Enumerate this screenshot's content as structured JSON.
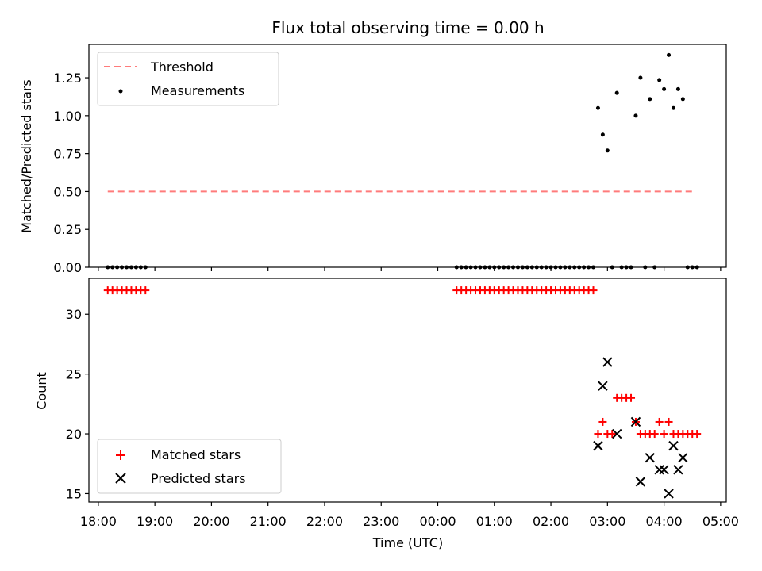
{
  "chart_data": [
    {
      "type": "scatter",
      "title": "Flux total observing time = 0.00 h",
      "xlabel": "",
      "ylabel": "Matched/Predicted stars",
      "xlim": [
        "17:50",
        "05:06"
      ],
      "ylim": [
        0,
        1.47
      ],
      "yticks": [
        "0.00",
        "0.25",
        "0.50",
        "0.75",
        "1.00",
        "1.25"
      ],
      "legend_position": "upper-left",
      "series": [
        {
          "name": "Threshold",
          "style": "dashed-line",
          "color": "#ff7b7b",
          "x": [
            "18:10",
            "04:33"
          ],
          "y": [
            0.5,
            0.5
          ]
        },
        {
          "name": "Measurements",
          "style": "dot",
          "color": "#000000",
          "x": [
            "18:10",
            "18:15",
            "18:20",
            "18:25",
            "18:30",
            "18:35",
            "18:40",
            "18:45",
            "18:50",
            "00:20",
            "00:25",
            "00:30",
            "00:35",
            "00:40",
            "00:45",
            "00:50",
            "00:55",
            "01:00",
            "01:05",
            "01:10",
            "01:15",
            "01:20",
            "01:25",
            "01:30",
            "01:35",
            "01:40",
            "01:45",
            "01:50",
            "01:55",
            "02:00",
            "02:05",
            "02:10",
            "02:15",
            "02:20",
            "02:25",
            "02:30",
            "02:35",
            "02:40",
            "02:45",
            "02:50",
            "02:55",
            "03:00",
            "03:05",
            "03:10",
            "03:15",
            "03:20",
            "03:25",
            "03:30",
            "03:35",
            "03:40",
            "03:45",
            "03:50",
            "03:55",
            "04:00",
            "04:05",
            "04:10",
            "04:15",
            "04:20",
            "04:25",
            "04:30",
            "04:35"
          ],
          "y": [
            0,
            0,
            0,
            0,
            0,
            0,
            0,
            0,
            0,
            0,
            0,
            0,
            0,
            0,
            0,
            0,
            0,
            0,
            0,
            0,
            0,
            0,
            0,
            0,
            0,
            0,
            0,
            0,
            0,
            0,
            0,
            0,
            0,
            0,
            0,
            0,
            0,
            0,
            0,
            1.05,
            0.875,
            0.77,
            0,
            1.15,
            0,
            0,
            0,
            1.0,
            1.25,
            0,
            1.11,
            0,
            1.235,
            1.175,
            1.4,
            1.05,
            1.175,
            1.11,
            0,
            0,
            0
          ]
        }
      ]
    },
    {
      "type": "scatter",
      "title": "",
      "xlabel": "Time (UTC)",
      "ylabel": "Count",
      "xlim": [
        "17:50",
        "05:06"
      ],
      "ylim": [
        14.3,
        33
      ],
      "yticks": [
        "15",
        "20",
        "25",
        "30"
      ],
      "xticks": [
        "18:00",
        "19:00",
        "20:00",
        "21:00",
        "22:00",
        "23:00",
        "00:00",
        "01:00",
        "02:00",
        "03:00",
        "04:00",
        "05:00"
      ],
      "legend_position": "lower-left",
      "series": [
        {
          "name": "Matched stars",
          "style": "plus",
          "color": "#ff0000",
          "x": [
            "18:10",
            "18:15",
            "18:20",
            "18:25",
            "18:30",
            "18:35",
            "18:40",
            "18:45",
            "18:50",
            "00:20",
            "00:25",
            "00:30",
            "00:35",
            "00:40",
            "00:45",
            "00:50",
            "00:55",
            "01:00",
            "01:05",
            "01:10",
            "01:15",
            "01:20",
            "01:25",
            "01:30",
            "01:35",
            "01:40",
            "01:45",
            "01:50",
            "01:55",
            "02:00",
            "02:05",
            "02:10",
            "02:15",
            "02:20",
            "02:25",
            "02:30",
            "02:35",
            "02:40",
            "02:45",
            "02:50",
            "02:55",
            "03:00",
            "03:05",
            "03:10",
            "03:15",
            "03:20",
            "03:25",
            "03:30",
            "03:35",
            "03:40",
            "03:45",
            "03:50",
            "03:55",
            "04:00",
            "04:05",
            "04:10",
            "04:15",
            "04:20",
            "04:25",
            "04:30",
            "04:35"
          ],
          "y": [
            32,
            32,
            32,
            32,
            32,
            32,
            32,
            32,
            32,
            32,
            32,
            32,
            32,
            32,
            32,
            32,
            32,
            32,
            32,
            32,
            32,
            32,
            32,
            32,
            32,
            32,
            32,
            32,
            32,
            32,
            32,
            32,
            32,
            32,
            32,
            32,
            32,
            32,
            32,
            20,
            21,
            20,
            20,
            23,
            23,
            23,
            23,
            21,
            20,
            20,
            20,
            20,
            21,
            20,
            21,
            20,
            20,
            20,
            20,
            20,
            20
          ]
        },
        {
          "name": "Predicted stars",
          "style": "x",
          "color": "#000000",
          "x": [
            "02:50",
            "02:55",
            "03:00",
            "03:10",
            "03:30",
            "03:35",
            "03:45",
            "03:55",
            "04:00",
            "04:05",
            "04:10",
            "04:15",
            "04:20"
          ],
          "y": [
            19,
            24,
            26,
            20,
            21,
            16,
            18,
            17,
            17,
            15,
            19,
            17,
            18
          ]
        }
      ]
    }
  ]
}
